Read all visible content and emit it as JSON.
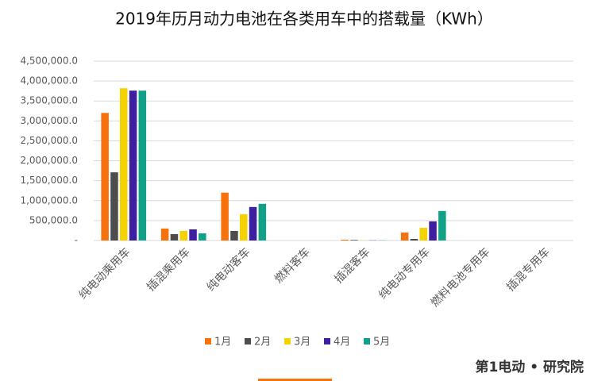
{
  "chart_data": {
    "type": "bar",
    "title": "2019年历月动力电池在各类用车中的搭载量（KWh）",
    "categories": [
      "纯电动乘用车",
      "插混乘用车",
      "纯电动客车",
      "燃料客车",
      "插混客车",
      "纯电动专用车",
      "燃料电池专用车",
      "插混专用车"
    ],
    "series": [
      {
        "name": "1月",
        "color": "#f7710c",
        "values": [
          3200000,
          300000,
          1200000,
          0,
          20000,
          200000,
          0,
          0
        ]
      },
      {
        "name": "2月",
        "color": "#4d4d4d",
        "values": [
          1710000,
          160000,
          240000,
          0,
          15000,
          40000,
          0,
          0
        ]
      },
      {
        "name": "3月",
        "color": "#f5d300",
        "values": [
          3820000,
          240000,
          660000,
          0,
          5000,
          320000,
          0,
          0
        ]
      },
      {
        "name": "4月",
        "color": "#3e1fa0",
        "values": [
          3760000,
          280000,
          840000,
          0,
          5000,
          480000,
          0,
          0
        ]
      },
      {
        "name": "5月",
        "color": "#12a087",
        "values": [
          3760000,
          180000,
          920000,
          0,
          5000,
          740000,
          0,
          0
        ]
      }
    ],
    "ylim": [
      0,
      4500000
    ],
    "yticks": [
      {
        "value": 0,
        "label": "-"
      },
      {
        "value": 500000,
        "label": "500,000.0"
      },
      {
        "value": 1000000,
        "label": "1,000,000.0"
      },
      {
        "value": 1500000,
        "label": "1,500,000.0"
      },
      {
        "value": 2000000,
        "label": "2,000,000.0"
      },
      {
        "value": 2500000,
        "label": "2,500,000.0"
      },
      {
        "value": 3000000,
        "label": "3,000,000.0"
      },
      {
        "value": 3500000,
        "label": "3,500,000.0"
      },
      {
        "value": 4000000,
        "label": "4,000,000.0"
      },
      {
        "value": 4500000,
        "label": "4,500,000.0"
      }
    ],
    "grid": true,
    "legend": "bottom"
  },
  "footer": {
    "logo": "第1电动 • 研究院"
  }
}
